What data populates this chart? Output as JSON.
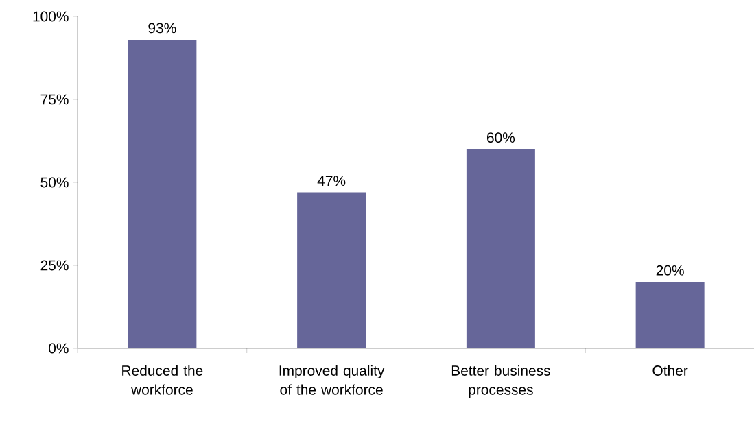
{
  "chart_data": {
    "type": "bar",
    "categories": [
      "Reduced the workforce",
      "Improved quality of the workforce",
      "Better business processes",
      "Other"
    ],
    "values": [
      93,
      47,
      60,
      20
    ],
    "value_labels": [
      "93%",
      "47%",
      "60%",
      "20%"
    ],
    "color": "#666699",
    "ylim": [
      0,
      100
    ],
    "yticks": [
      {
        "value": 0,
        "label": "0%"
      },
      {
        "value": 25,
        "label": "25%"
      },
      {
        "value": 50,
        "label": "50%"
      },
      {
        "value": 75,
        "label": "75%"
      },
      {
        "value": 100,
        "label": "100%"
      }
    ],
    "grid": false
  }
}
